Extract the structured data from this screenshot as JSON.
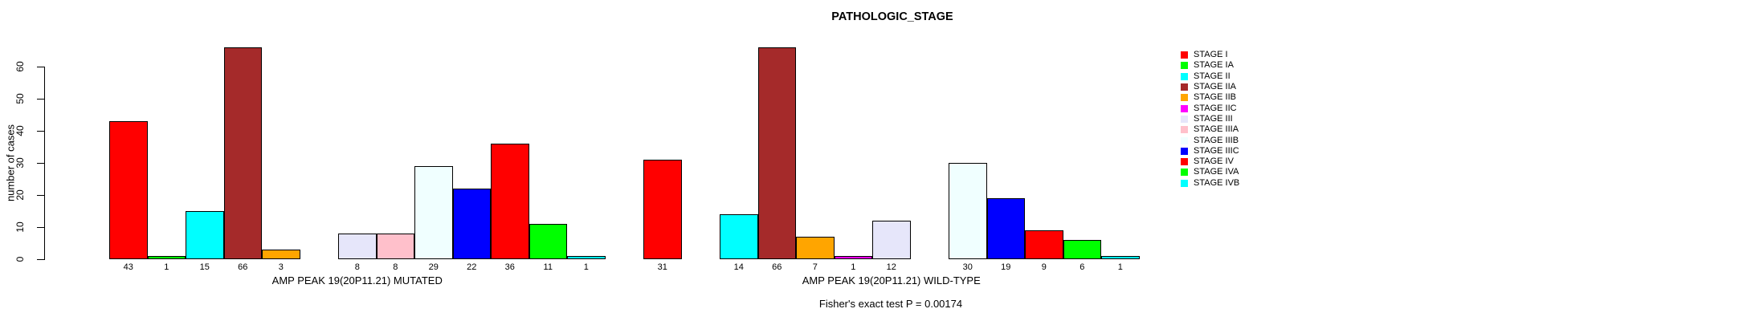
{
  "chart_data": {
    "type": "bar",
    "title": "PATHOLOGIC_STAGE",
    "ylabel": "number of cases",
    "ylim": [
      0,
      66
    ],
    "yticks": [
      0,
      10,
      20,
      30,
      40,
      50,
      60
    ],
    "grid": false,
    "categories": [
      "STAGE I",
      "STAGE IA",
      "STAGE II",
      "STAGE IIA",
      "STAGE IIB",
      "STAGE IIC",
      "STAGE III",
      "STAGE IIIA",
      "STAGE IIIB",
      "STAGE IIIC",
      "STAGE IV",
      "STAGE IVA",
      "STAGE IVB"
    ],
    "palette": [
      "#FF0000",
      "#00FF00",
      "#00FFFF",
      "#A52A2A",
      "#FFA500",
      "#FF00FF",
      "#E6E6FA",
      "#FFC0CB",
      "#F0FFFF",
      "#0000FF",
      "#FF0000",
      "#00FF00",
      "#00FFFF"
    ],
    "series": [
      {
        "name": "AMP PEAK 19(20P11.21) MUTATED",
        "values": [
          43,
          1,
          15,
          66,
          3,
          0,
          8,
          8,
          29,
          22,
          36,
          11,
          1
        ]
      },
      {
        "name": "AMP PEAK 19(20P11.21) WILD-TYPE",
        "values": [
          31,
          0,
          14,
          66,
          7,
          1,
          12,
          0,
          30,
          19,
          9,
          6,
          1
        ]
      }
    ],
    "bar_value_labels_shown": true,
    "zero_count_bars_hidden": true,
    "legend_position": "right",
    "legend_entries": [
      "STAGE I",
      "STAGE IA",
      "STAGE II",
      "STAGE IIA",
      "STAGE IIB",
      "STAGE IIC",
      "STAGE III",
      "STAGE IIIA",
      "STAGE IIIB",
      "STAGE IIIC",
      "STAGE IV",
      "STAGE IVA",
      "STAGE IVB"
    ],
    "annotation": "Fisher's exact test P = 0.00174"
  }
}
